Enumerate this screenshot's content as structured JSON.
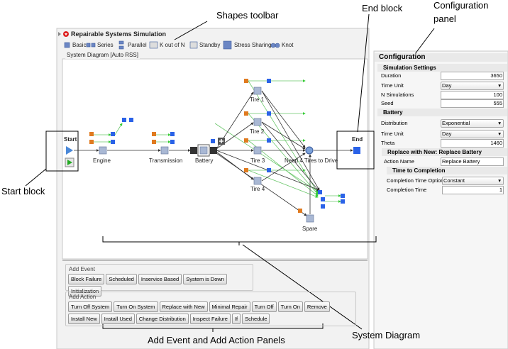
{
  "annotations": {
    "shapes_toolbar": "Shapes toolbar",
    "end_block": "End block",
    "configuration_panel": "Configuration panel",
    "start_block": "Start block",
    "system_diagram": "System Diagram",
    "panels": "Add Event and Add Action Panels"
  },
  "window": {
    "title": "Repairable Systems Simulation",
    "toolbar": [
      "Basic",
      "Series",
      "Parallel",
      "K out of N",
      "Standby",
      "Stress Sharing",
      "Knot"
    ],
    "diagram": {
      "title": "System Diagram [Auto RSS]",
      "start": "Start",
      "end": "End",
      "nodes": [
        "Engine",
        "Transmission",
        "Battery",
        "Tire 1",
        "Tire 2",
        "Tire 3",
        "Tire 4",
        "Need 4 Tires to Drive",
        "Spare"
      ]
    },
    "add_event": {
      "title": "Add Event",
      "buttons": [
        "Block Failure",
        "Scheduled",
        "Inservice Based",
        "System is Down",
        "Initialization"
      ]
    },
    "add_action": {
      "title": "Add Action",
      "buttons": [
        "Turn Off System",
        "Turn On System",
        "Replace with New",
        "Minimal Repair",
        "Turn Off",
        "Turn On",
        "Remove",
        "Install New",
        "Install Used",
        "Change Distribution",
        "Inspect Failure",
        "If",
        "Schedule"
      ]
    }
  },
  "configuration": {
    "title": "Configuration",
    "simulation": {
      "title": "Simulation Settings",
      "duration": [
        "Duration",
        "3650"
      ],
      "time_unit": [
        "Time Unit",
        "Day"
      ],
      "n": [
        "N Simulations",
        "100"
      ],
      "seed": [
        "Seed",
        "555"
      ]
    },
    "battery": {
      "title": "Battery",
      "distribution": [
        "Distribution",
        "Exponential"
      ],
      "time_unit": [
        "Time Unit",
        "Day"
      ],
      "theta": [
        "Theta",
        "1460"
      ]
    },
    "replace": {
      "title": "Replace with New: Replace Battery",
      "action_name": [
        "Action Name",
        "Replace Battery"
      ]
    },
    "completion": {
      "title": "Time to Completion",
      "options": [
        "Completion Time Options",
        "Constant"
      ],
      "time": [
        "Completion Time",
        "1"
      ]
    }
  }
}
